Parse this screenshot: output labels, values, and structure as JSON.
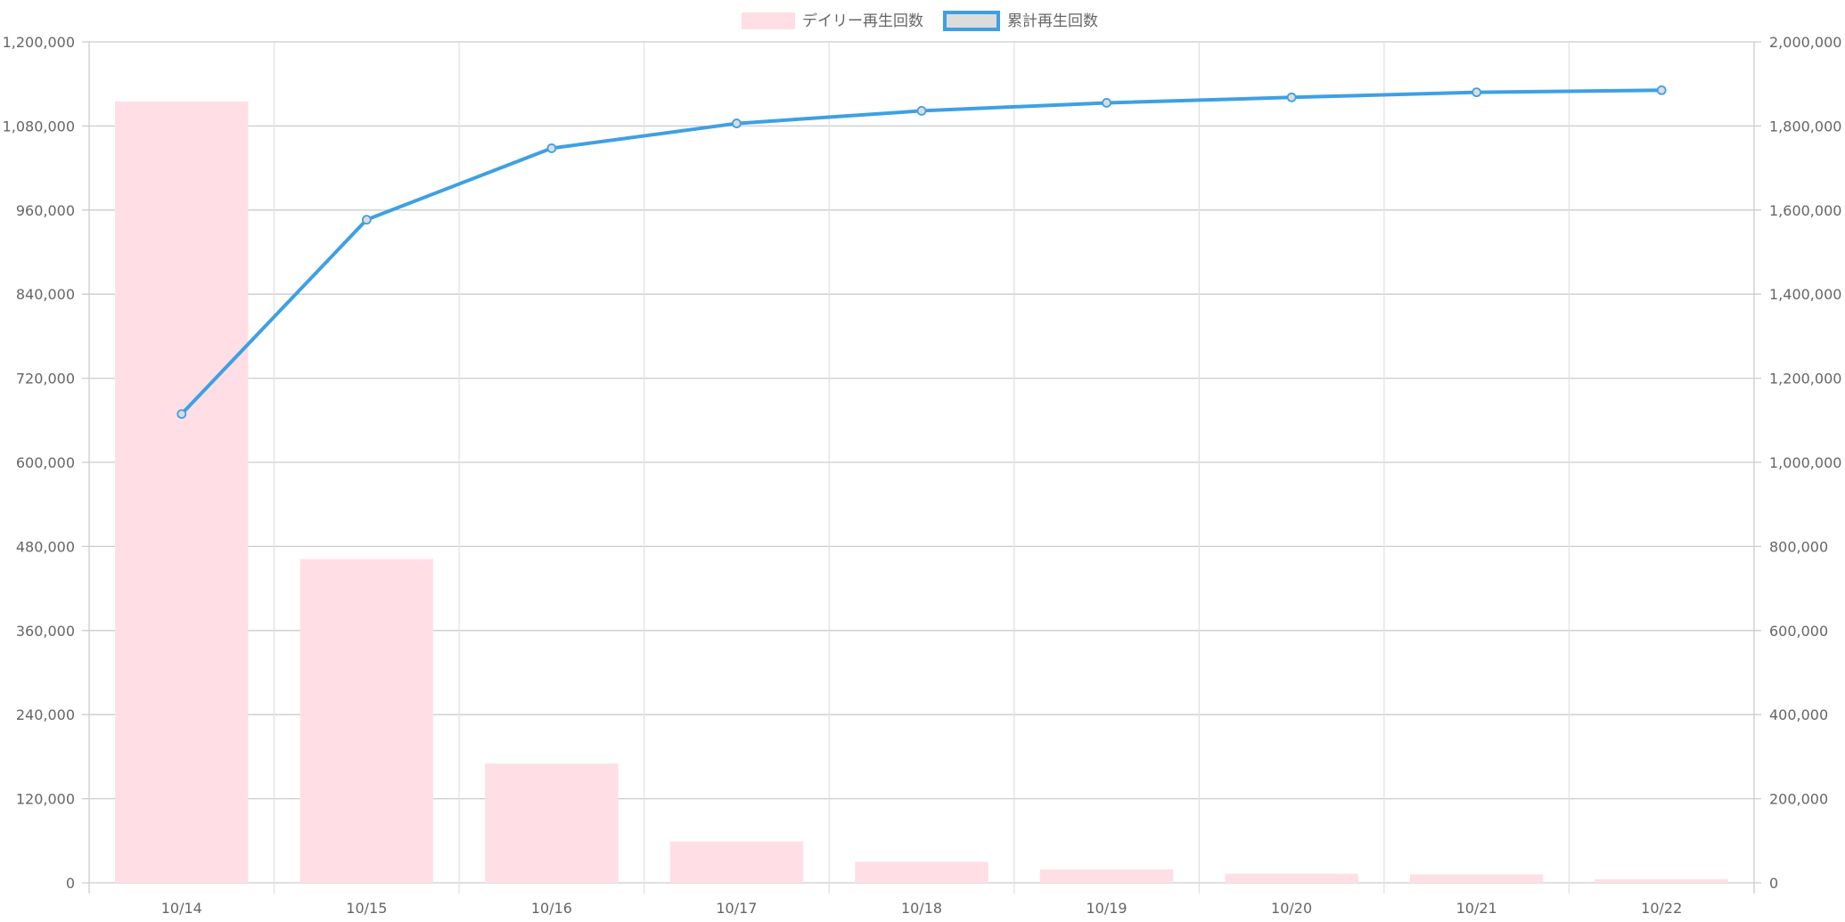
{
  "chart_data": {
    "type": "bar",
    "categories": [
      "10/14",
      "10/15",
      "10/16",
      "10/17",
      "10/18",
      "10/19",
      "10/20",
      "10/21",
      "10/22"
    ],
    "series": [
      {
        "name": "デイリー再生回数",
        "type": "bar",
        "axis": "left",
        "color": "#ffdfe5",
        "values": [
          1115000,
          462000,
          170000,
          59000,
          30000,
          19000,
          13000,
          12000,
          5000
        ]
      },
      {
        "name": "累計再生回数",
        "type": "line",
        "axis": "right",
        "color": "#3ea0e4",
        "values": [
          1115000,
          1577000,
          1747000,
          1806000,
          1836000,
          1855000,
          1868000,
          1880000,
          1885000
        ]
      }
    ],
    "left_axis": {
      "ylim": [
        0,
        1200000
      ],
      "ticks": [
        "0",
        "120,000",
        "240,000",
        "360,000",
        "480,000",
        "600,000",
        "720,000",
        "840,000",
        "960,000",
        "1,080,000",
        "1,200,000"
      ]
    },
    "right_axis": {
      "ylim": [
        0,
        2000000
      ],
      "ticks": [
        "0",
        "200,000",
        "400,000",
        "600,000",
        "800,000",
        "1,000,000",
        "1,200,000",
        "1,400,000",
        "1,600,000",
        "1,800,000",
        "2,000,000"
      ]
    },
    "grid": true,
    "legend_position": "top-center"
  }
}
